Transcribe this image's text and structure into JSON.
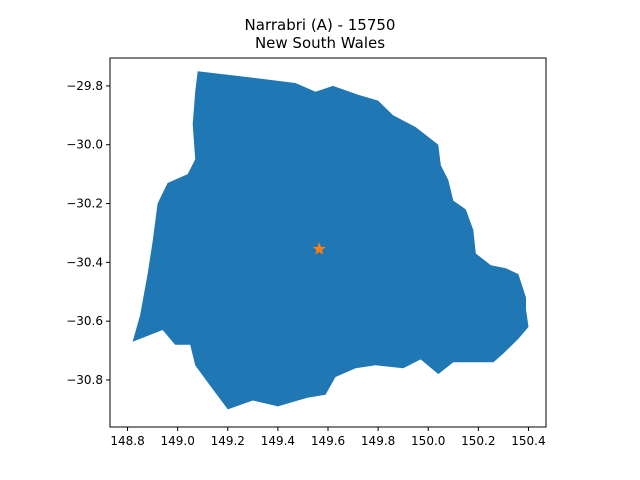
{
  "chart_data": {
    "type": "map",
    "title_line1": "Narrabri (A) - 15750",
    "title_line2": "New South Wales",
    "xlabel": "",
    "ylabel": "",
    "xlim": [
      148.73,
      150.47
    ],
    "ylim": [
      -30.96,
      -29.705
    ],
    "x_ticks": [
      148.8,
      149.0,
      149.2,
      149.4,
      149.6,
      149.8,
      150.0,
      150.2,
      150.4
    ],
    "x_tick_labels": [
      "148.8",
      "149.0",
      "149.2",
      "149.4",
      "149.6",
      "149.8",
      "150.0",
      "150.2",
      "150.4"
    ],
    "y_ticks": [
      -29.8,
      -30.0,
      -30.2,
      -30.4,
      -30.6,
      -30.8
    ],
    "y_tick_labels": [
      "−29.8",
      "−30.0",
      "−30.2",
      "−30.4",
      "−30.6",
      "−30.8"
    ],
    "grid": false,
    "region": {
      "name": "Narrabri",
      "color": "#1f77b4",
      "boundary": [
        [
          149.08,
          -29.75
        ],
        [
          149.28,
          -29.77
        ],
        [
          149.47,
          -29.79
        ],
        [
          149.55,
          -29.82
        ],
        [
          149.62,
          -29.8
        ],
        [
          149.72,
          -29.83
        ],
        [
          149.8,
          -29.85
        ],
        [
          149.86,
          -29.9
        ],
        [
          149.95,
          -29.94
        ],
        [
          150.04,
          -30.0
        ],
        [
          150.05,
          -30.07
        ],
        [
          150.08,
          -30.12
        ],
        [
          150.1,
          -30.19
        ],
        [
          150.15,
          -30.22
        ],
        [
          150.18,
          -30.29
        ],
        [
          150.19,
          -30.37
        ],
        [
          150.25,
          -30.41
        ],
        [
          150.31,
          -30.42
        ],
        [
          150.36,
          -30.44
        ],
        [
          150.39,
          -30.52
        ],
        [
          150.39,
          -30.56
        ],
        [
          150.4,
          -30.62
        ],
        [
          150.36,
          -30.66
        ],
        [
          150.3,
          -30.71
        ],
        [
          150.26,
          -30.74
        ],
        [
          150.1,
          -30.74
        ],
        [
          150.04,
          -30.78
        ],
        [
          149.97,
          -30.73
        ],
        [
          149.9,
          -30.76
        ],
        [
          149.79,
          -30.75
        ],
        [
          149.71,
          -30.76
        ],
        [
          149.63,
          -30.79
        ],
        [
          149.59,
          -30.85
        ],
        [
          149.52,
          -30.86
        ],
        [
          149.48,
          -30.87
        ],
        [
          149.4,
          -30.89
        ],
        [
          149.3,
          -30.87
        ],
        [
          149.2,
          -30.9
        ],
        [
          149.13,
          -30.82
        ],
        [
          149.07,
          -30.75
        ],
        [
          149.05,
          -30.68
        ],
        [
          148.99,
          -30.68
        ],
        [
          148.94,
          -30.63
        ],
        [
          148.82,
          -30.67
        ],
        [
          148.85,
          -30.58
        ],
        [
          148.88,
          -30.44
        ],
        [
          148.9,
          -30.33
        ],
        [
          148.92,
          -30.2
        ],
        [
          148.96,
          -30.13
        ],
        [
          149.04,
          -30.1
        ],
        [
          149.07,
          -30.05
        ],
        [
          149.06,
          -29.93
        ],
        [
          149.07,
          -29.82
        ]
      ]
    },
    "marker": {
      "type": "star",
      "lon": 149.565,
      "lat": -30.355,
      "color": "#ff7f0e"
    }
  }
}
